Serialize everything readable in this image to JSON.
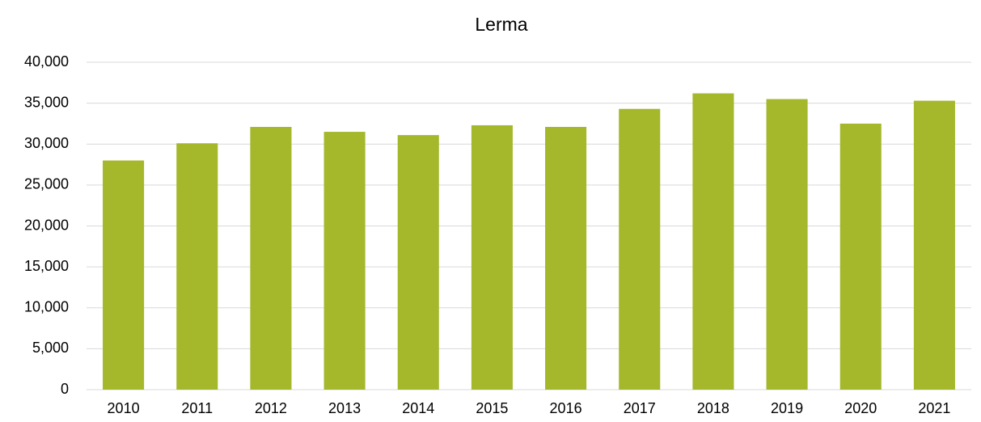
{
  "chart_data": {
    "type": "bar",
    "title": "Lerma",
    "categories": [
      "2010",
      "2011",
      "2012",
      "2013",
      "2014",
      "2015",
      "2016",
      "2017",
      "2018",
      "2019",
      "2020",
      "2021"
    ],
    "values": [
      28000,
      30100,
      32100,
      31500,
      31100,
      32300,
      32100,
      34300,
      36200,
      35500,
      32500,
      35300
    ],
    "color": "#a5b72b",
    "ylim": [
      0,
      40000
    ],
    "yticks": [
      0,
      {
        "value": 5000,
        "label": "5,000"
      },
      {
        "value": 10000,
        "label": "10,000"
      },
      {
        "value": 15000,
        "label": "15,000"
      },
      {
        "value": 20000,
        "label": "20,000"
      },
      {
        "value": 25000,
        "label": "25,000"
      },
      {
        "value": 30000,
        "label": "30,000"
      },
      {
        "value": 35000,
        "label": "35,000"
      },
      {
        "value": 40000,
        "label": "40,000"
      }
    ],
    "grid": true
  }
}
